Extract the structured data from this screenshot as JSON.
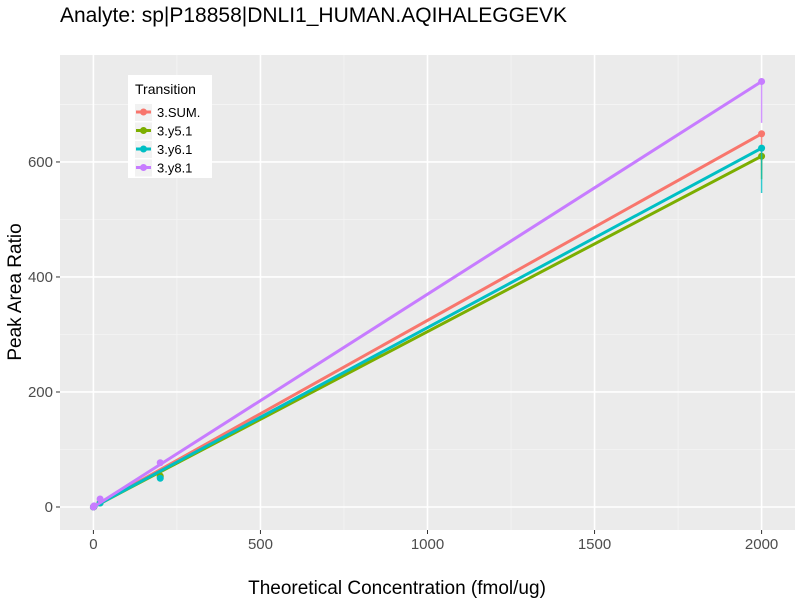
{
  "chart_data": {
    "type": "line",
    "title": "Analyte: sp|P18858|DNLI1_HUMAN.AQIHALEGGEVK",
    "xlabel": "Theoretical Concentration (fmol/ug)",
    "ylabel": "Peak Area Ratio",
    "xlim": [
      -100,
      2100
    ],
    "ylim": [
      -40,
      786
    ],
    "xticks": [
      0,
      500,
      1000,
      1500,
      2000
    ],
    "yticks": [
      0,
      200,
      400,
      600
    ],
    "grid": true,
    "legend": {
      "title": "Transition",
      "placement": "top-left"
    },
    "series": [
      {
        "name": "3.SUM.",
        "color": "#F8766D",
        "points": [
          [
            0,
            0
          ],
          [
            2,
            1
          ],
          [
            20,
            8
          ],
          [
            200,
            52
          ],
          [
            2000,
            649
          ]
        ],
        "fit": [
          [
            0,
            0
          ],
          [
            2000,
            649
          ]
        ],
        "errorbar": [
          2000,
          586,
          649
        ]
      },
      {
        "name": "3.y5.1",
        "color": "#7CAE00",
        "points": [
          [
            0,
            0
          ],
          [
            2,
            1
          ],
          [
            20,
            7
          ],
          [
            200,
            54
          ],
          [
            2000,
            610
          ]
        ],
        "fit": [
          [
            0,
            0
          ],
          [
            2000,
            610
          ]
        ],
        "errorbar": [
          2000,
          570,
          610
        ]
      },
      {
        "name": "3.y6.1",
        "color": "#00BFC4",
        "points": [
          [
            0,
            0
          ],
          [
            2,
            1
          ],
          [
            20,
            7
          ],
          [
            200,
            50
          ],
          [
            2000,
            624
          ]
        ],
        "fit": [
          [
            0,
            0
          ],
          [
            2000,
            624
          ]
        ],
        "errorbar": [
          2000,
          546,
          624
        ]
      },
      {
        "name": "3.y8.1",
        "color": "#C77CFF",
        "points": [
          [
            0,
            0
          ],
          [
            2,
            2
          ],
          [
            20,
            14
          ],
          [
            200,
            77
          ],
          [
            2000,
            740
          ]
        ],
        "fit": [
          [
            0,
            0
          ],
          [
            2000,
            740
          ]
        ],
        "errorbar": [
          2000,
          668,
          740
        ]
      }
    ]
  }
}
